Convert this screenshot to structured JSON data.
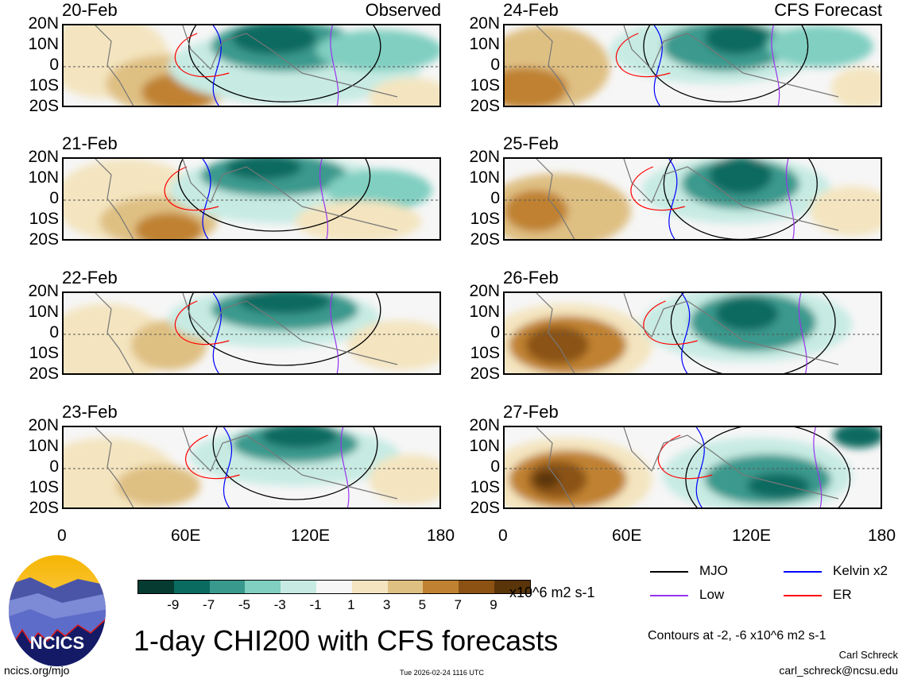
{
  "panels": [
    {
      "date": "20-Feb",
      "label": "Observed"
    },
    {
      "date": "21-Feb",
      "label": ""
    },
    {
      "date": "22-Feb",
      "label": ""
    },
    {
      "date": "23-Feb",
      "label": ""
    },
    {
      "date": "24-Feb",
      "label": "CFS Forecast"
    },
    {
      "date": "25-Feb",
      "label": ""
    },
    {
      "date": "26-Feb",
      "label": ""
    },
    {
      "date": "27-Feb",
      "label": ""
    }
  ],
  "y_ticks": [
    "20N",
    "10N",
    "0",
    "10S",
    "20S"
  ],
  "x_ticks": [
    "0",
    "60E",
    "120E",
    "180"
  ],
  "colorbar": {
    "colors": [
      "#063b31",
      "#0a6b60",
      "#3a998d",
      "#80cfc1",
      "#c7ebe3",
      "#f6f6f6",
      "#f4e5c0",
      "#dfc083",
      "#c08232",
      "#8b5214",
      "#5a3509"
    ],
    "labels": [
      "-9",
      "-7",
      "-5",
      "-3",
      "-1",
      "1",
      "3",
      "5",
      "7",
      "9"
    ],
    "units": "x10^6 m2 s-1"
  },
  "legend": [
    {
      "name": "MJO",
      "color": "#000000"
    },
    {
      "name": "Kelvin x2",
      "color": "#0000ff"
    },
    {
      "name": "Low",
      "color": "#9933ee"
    },
    {
      "name": "ER",
      "color": "#ff0000"
    }
  ],
  "title": "1-day CHI200 with CFS forecasts",
  "contours_note": "Contours at -2, -6 x10^6 m2 s-1",
  "author": "Carl Schreck",
  "email": "carl_schreck@ncsu.edu",
  "url": "ncics.org/mjo",
  "timestamp": "Tue 2026-02-24 1116 UTC",
  "logo_text": "NCICS"
}
